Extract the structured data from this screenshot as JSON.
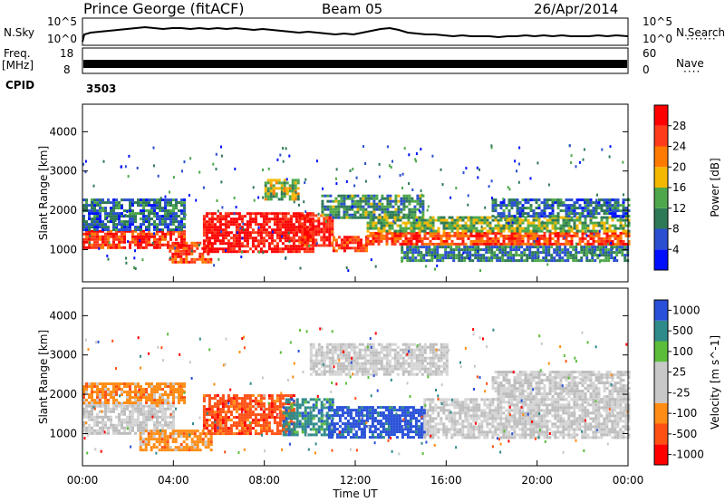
{
  "header": {
    "station": "Prince George (fitACF)",
    "beam": "Beam 05",
    "date": "26/Apr/2014"
  },
  "params": {
    "nsky_label": "N.Sky",
    "nsky_top": "10^5",
    "nsky_bottom": "10^0",
    "nsearch_label": "N.Search",
    "nsearch_top": "10^5",
    "nsearch_bottom": "10^0",
    "freq_label_1": "Freq.",
    "freq_label_2": "[MHz]",
    "freq_top": "18",
    "freq_bottom": "8",
    "nave_label": "Nave",
    "nave_top": "60",
    "nave_bottom": "0",
    "cpid_label": "CPID",
    "cpid_value": "3503"
  },
  "colors": {
    "power": [
      "#0010ff",
      "#2a4fd0",
      "#2f7a56",
      "#4ea84b",
      "#f5b800",
      "#ff7a00",
      "#ff3c1a",
      "#ff0000"
    ],
    "velocity": [
      "#2850d8",
      "#2f8a8a",
      "#5bbd3a",
      "#c8c8c8",
      "#c8c8c8",
      "#ff8c14",
      "#ff5014",
      "#ff0000"
    ],
    "ground_scatter": "#bdbdbd"
  },
  "chart_data": [
    {
      "type": "heatmap",
      "panel": "power",
      "title": "",
      "xlabel": "Time UT",
      "ylabel": "Slant Range [km]",
      "x_ticks": [
        "00:00",
        "04:00",
        "08:00",
        "12:00",
        "16:00",
        "20:00",
        "00:00"
      ],
      "x_range_hours": [
        0,
        24
      ],
      "y_ticks": [
        1000,
        2000,
        3000,
        4000
      ],
      "y_range_km": [
        180,
        4700
      ],
      "colorbar": {
        "label": "Power [dB]",
        "ticks": [
          4,
          8,
          12,
          16,
          20,
          24,
          28
        ],
        "range": [
          0,
          32
        ]
      },
      "bands": [
        {
          "t0": 0.0,
          "t1": 4.5,
          "r0": 1050,
          "r1": 1500,
          "level": 0.85
        },
        {
          "t0": 0.0,
          "t1": 4.5,
          "r0": 1500,
          "r1": 2300,
          "level": 0.25
        },
        {
          "t0": 3.8,
          "t1": 5.7,
          "r0": 650,
          "r1": 1200,
          "level": 0.8
        },
        {
          "t0": 5.3,
          "t1": 10.2,
          "r0": 950,
          "r1": 1950,
          "level": 0.95
        },
        {
          "t0": 8.0,
          "t1": 9.5,
          "r0": 2300,
          "r1": 2800,
          "level": 0.5
        },
        {
          "t0": 9.5,
          "t1": 11.0,
          "r0": 1100,
          "r1": 1900,
          "level": 0.9
        },
        {
          "t0": 11.0,
          "t1": 12.5,
          "r0": 950,
          "r1": 1350,
          "level": 0.85
        },
        {
          "t0": 10.5,
          "t1": 15.0,
          "r0": 1800,
          "r1": 2400,
          "level": 0.35
        },
        {
          "t0": 12.5,
          "t1": 24.0,
          "r0": 1150,
          "r1": 1450,
          "level": 0.8
        },
        {
          "t0": 12.5,
          "t1": 24.0,
          "r0": 1450,
          "r1": 1850,
          "level": 0.45
        },
        {
          "t0": 14.0,
          "t1": 24.0,
          "r0": 700,
          "r1": 1100,
          "level": 0.3
        },
        {
          "t0": 18.0,
          "t1": 24.0,
          "r0": 1850,
          "r1": 2300,
          "level": 0.25
        }
      ]
    },
    {
      "type": "heatmap",
      "panel": "velocity",
      "title": "",
      "xlabel": "Time UT",
      "ylabel": "Slant Range [km]",
      "x_ticks": [
        "00:00",
        "04:00",
        "08:00",
        "12:00",
        "16:00",
        "20:00",
        "00:00"
      ],
      "x_range_hours": [
        0,
        24
      ],
      "y_ticks": [
        1000,
        2000,
        3000,
        4000
      ],
      "y_range_km": [
        180,
        4700
      ],
      "colorbar": {
        "label": "Velocity [m s^-1]",
        "ticks": [
          "1000",
          "500",
          "100",
          "25",
          "-25",
          "-100",
          "-500",
          "-1000"
        ],
        "range": [
          -1000,
          1000
        ]
      },
      "bands": [
        {
          "t0": 0.0,
          "t1": 4.0,
          "r0": 1000,
          "r1": 1800,
          "color_index": 3,
          "ground": true
        },
        {
          "t0": 0.0,
          "t1": 4.5,
          "r0": 1800,
          "r1": 2300,
          "color_index": 5
        },
        {
          "t0": 2.5,
          "t1": 5.7,
          "r0": 600,
          "r1": 1100,
          "color_index": 5
        },
        {
          "t0": 5.3,
          "t1": 9.3,
          "r0": 1000,
          "r1": 2000,
          "color_index": 6
        },
        {
          "t0": 8.8,
          "t1": 11.0,
          "r0": 1000,
          "r1": 1900,
          "color_index": 1
        },
        {
          "t0": 10.8,
          "t1": 15.0,
          "r0": 900,
          "r1": 1700,
          "color_index": 0
        },
        {
          "t0": 15.0,
          "t1": 24.0,
          "r0": 900,
          "r1": 1900,
          "color_index": 3,
          "ground": true
        },
        {
          "t0": 10.0,
          "t1": 16.0,
          "r0": 2500,
          "r1": 3300,
          "color_index": 3,
          "ground": true
        },
        {
          "t0": 18.0,
          "t1": 24.0,
          "r0": 1900,
          "r1": 2600,
          "color_index": 3,
          "ground": true
        }
      ]
    }
  ]
}
